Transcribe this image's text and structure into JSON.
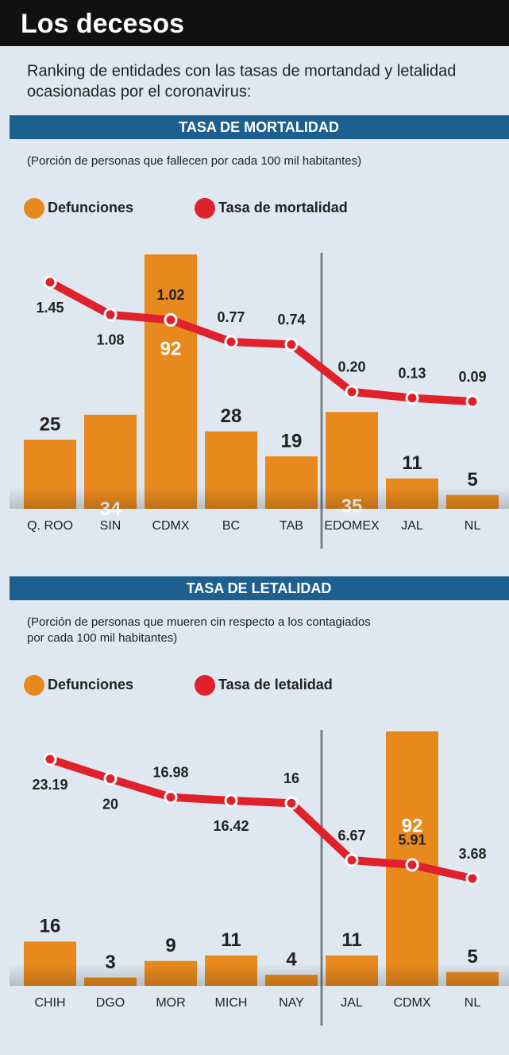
{
  "header": {
    "title": "Los decesos",
    "subtitle": [
      "Ranking de entidades con las tasas de mortandad y letalidad",
      "ocasionadas por el coronavirus:"
    ]
  },
  "chart_data": [
    {
      "type": "combo",
      "title": "TASA DE MORTALIDAD",
      "note": [
        "(Porción de personas que fallecen por cada 100 mil habitantes)"
      ],
      "categories": [
        "Q. ROO",
        "SIN",
        "CDMX",
        "BC",
        "TAB",
        "EDOMEX",
        "JAL",
        "NL"
      ],
      "series": [
        {
          "name": "Defunciones",
          "kind": "bar",
          "color": "#e8891e",
          "values": [
            25,
            34,
            92,
            28,
            19,
            35,
            11,
            5
          ]
        },
        {
          "name": "Tasa de mortalidad",
          "kind": "line",
          "color": "#e0212b",
          "values": [
            1.45,
            1.08,
            1.02,
            0.77,
            0.74,
            0.2,
            0.13,
            0.09
          ],
          "value_labels": [
            "1.45",
            "1.08",
            "1.02",
            "0.77",
            "0.74",
            "0.20",
            "0.13",
            "0.09"
          ]
        }
      ]
    },
    {
      "type": "combo",
      "title": "TASA DE LETALIDAD",
      "note": [
        "(Porción de personas que mueren cin respecto a los contagiados",
        "por cada 100 mil habitantes)"
      ],
      "categories": [
        "CHIH",
        "DGO",
        "MOR",
        "MICH",
        "NAY",
        "JAL",
        "CDMX",
        "NL"
      ],
      "series": [
        {
          "name": "Defunciones",
          "kind": "bar",
          "color": "#e8891e",
          "values": [
            16,
            3,
            9,
            11,
            4,
            11,
            92,
            5
          ]
        },
        {
          "name": "Tasa de letalidad",
          "kind": "line",
          "color": "#e0212b",
          "values": [
            23.19,
            20,
            16.98,
            16.42,
            16,
            6.67,
            5.91,
            3.68
          ]
        }
      ]
    }
  ]
}
